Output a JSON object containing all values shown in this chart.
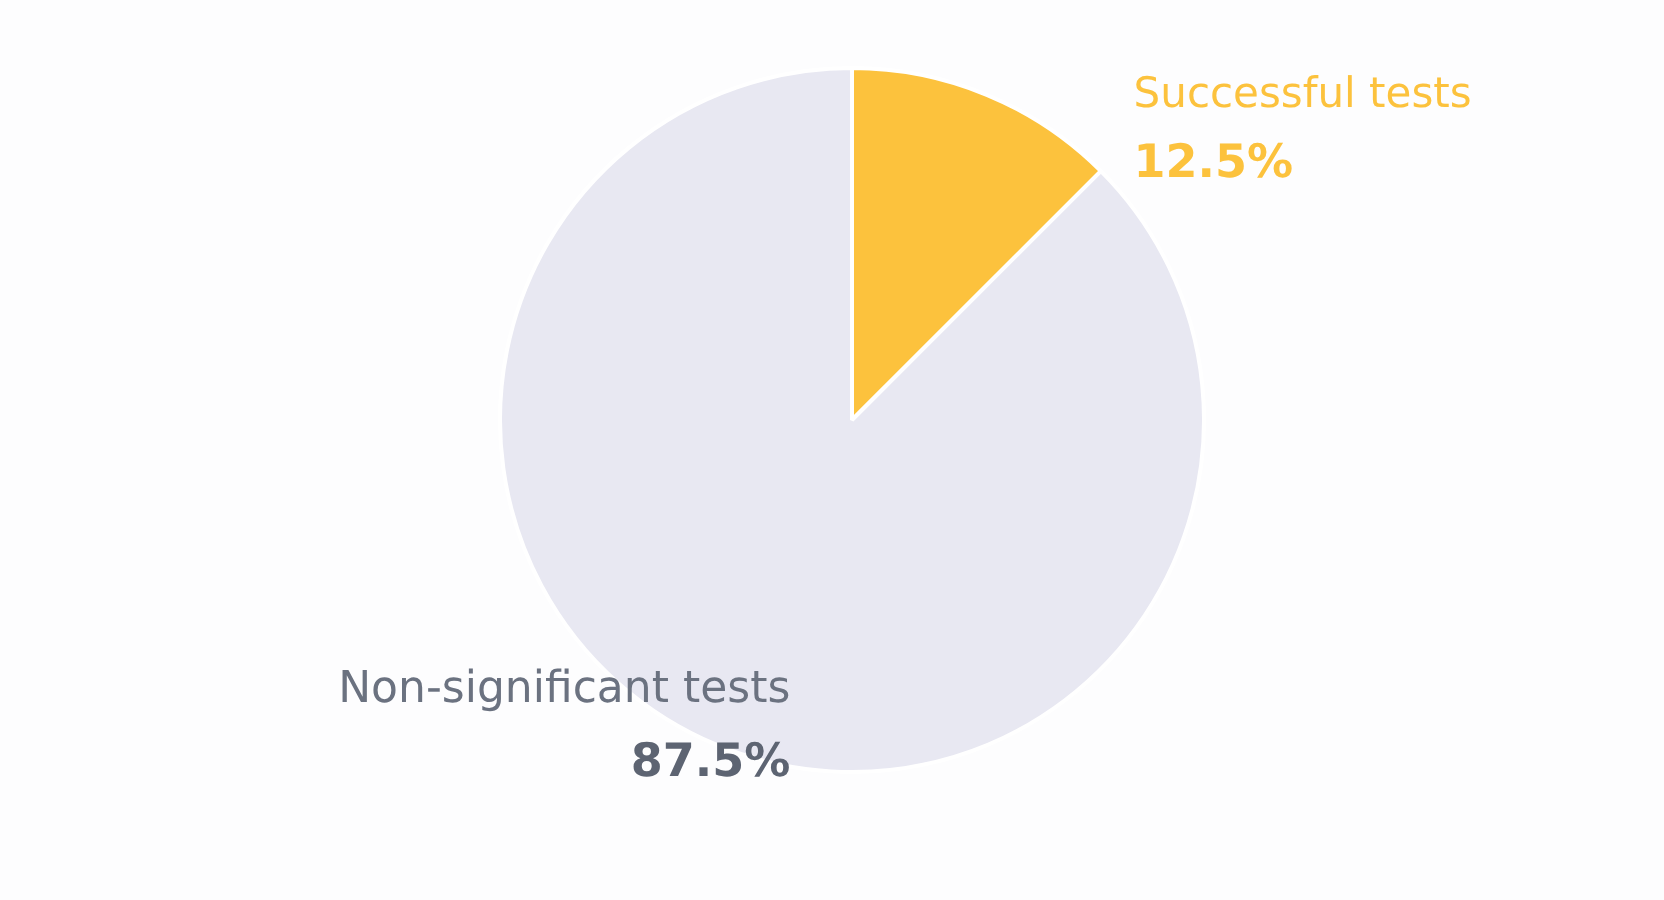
{
  "chart_data": {
    "type": "pie",
    "categories": [
      "Successful tests",
      "Non-significant tests"
    ],
    "values": [
      12.5,
      87.5
    ],
    "colors": [
      "#fcc23d",
      "#e8e8f2"
    ],
    "value_labels": [
      "12.5%",
      "87.5%"
    ],
    "legend": false
  }
}
